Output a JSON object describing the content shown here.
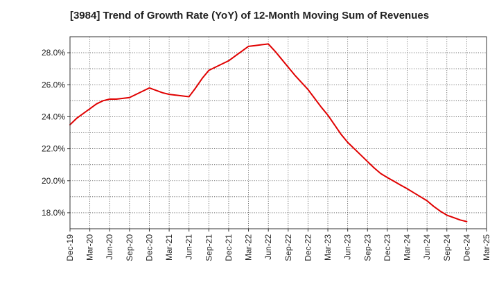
{
  "chart_data": {
    "type": "line",
    "title": "[3984]  Trend of Growth Rate (YoY) of 12-Month Moving Sum of Revenues",
    "xlabel": "",
    "ylabel": "",
    "x_categories": [
      "Dec-19",
      "Mar-20",
      "Jun-20",
      "Sep-20",
      "Dec-20",
      "Mar-21",
      "Jun-21",
      "Sep-21",
      "Dec-21",
      "Mar-22",
      "Jun-22",
      "Sep-22",
      "Dec-22",
      "Mar-23",
      "Jun-23",
      "Sep-23",
      "Dec-23",
      "Mar-24",
      "Jun-24",
      "Sep-24",
      "Dec-24",
      "Mar-25"
    ],
    "y_ticks": [
      {
        "value": 18,
        "label": "18.0%"
      },
      {
        "value": 20,
        "label": "20.0%"
      },
      {
        "value": 22,
        "label": "22.0%"
      },
      {
        "value": 24,
        "label": "24.0%"
      },
      {
        "value": 26,
        "label": "26.0%"
      },
      {
        "value": 28,
        "label": "28.0%"
      }
    ],
    "ylim": [
      17.0,
      29.0
    ],
    "grid": true,
    "series": [
      {
        "color": "#e00000",
        "values": [
          {
            "x": "Dec-19",
            "y": 23.5
          },
          {
            "x": "Jan-20",
            "y": 23.9
          },
          {
            "x": "Feb-20",
            "y": 24.2
          },
          {
            "x": "Mar-20",
            "y": 24.5
          },
          {
            "x": "Apr-20",
            "y": 24.8
          },
          {
            "x": "May-20",
            "y": 25.0
          },
          {
            "x": "Jun-20",
            "y": 25.1
          },
          {
            "x": "Jul-20",
            "y": 25.1
          },
          {
            "x": "Aug-20",
            "y": 25.15
          },
          {
            "x": "Sep-20",
            "y": 25.2
          },
          {
            "x": "Oct-20",
            "y": 25.4
          },
          {
            "x": "Nov-20",
            "y": 25.6
          },
          {
            "x": "Dec-20",
            "y": 25.8
          },
          {
            "x": "Jan-21",
            "y": 25.65
          },
          {
            "x": "Feb-21",
            "y": 25.5
          },
          {
            "x": "Mar-21",
            "y": 25.4
          },
          {
            "x": "Apr-21",
            "y": 25.35
          },
          {
            "x": "May-21",
            "y": 25.3
          },
          {
            "x": "Jun-21",
            "y": 25.25
          },
          {
            "x": "Jul-21",
            "y": 25.8
          },
          {
            "x": "Aug-21",
            "y": 26.4
          },
          {
            "x": "Sep-21",
            "y": 26.9
          },
          {
            "x": "Oct-21",
            "y": 27.1
          },
          {
            "x": "Nov-21",
            "y": 27.3
          },
          {
            "x": "Dec-21",
            "y": 27.5
          },
          {
            "x": "Jan-22",
            "y": 27.8
          },
          {
            "x": "Feb-22",
            "y": 28.1
          },
          {
            "x": "Mar-22",
            "y": 28.4
          },
          {
            "x": "Apr-22",
            "y": 28.45
          },
          {
            "x": "May-22",
            "y": 28.5
          },
          {
            "x": "Jun-22",
            "y": 28.55
          },
          {
            "x": "Jul-22",
            "y": 28.1
          },
          {
            "x": "Aug-22",
            "y": 27.6
          },
          {
            "x": "Sep-22",
            "y": 27.1
          },
          {
            "x": "Oct-22",
            "y": 26.6
          },
          {
            "x": "Nov-22",
            "y": 26.15
          },
          {
            "x": "Dec-22",
            "y": 25.7
          },
          {
            "x": "Jan-23",
            "y": 25.15
          },
          {
            "x": "Feb-23",
            "y": 24.6
          },
          {
            "x": "Mar-23",
            "y": 24.1
          },
          {
            "x": "Apr-23",
            "y": 23.5
          },
          {
            "x": "May-23",
            "y": 22.9
          },
          {
            "x": "Jun-23",
            "y": 22.4
          },
          {
            "x": "Jul-23",
            "y": 22.0
          },
          {
            "x": "Aug-23",
            "y": 21.6
          },
          {
            "x": "Sep-23",
            "y": 21.2
          },
          {
            "x": "Oct-23",
            "y": 20.8
          },
          {
            "x": "Nov-23",
            "y": 20.45
          },
          {
            "x": "Dec-23",
            "y": 20.2
          },
          {
            "x": "Jan-24",
            "y": 19.97
          },
          {
            "x": "Feb-24",
            "y": 19.73
          },
          {
            "x": "Mar-24",
            "y": 19.5
          },
          {
            "x": "Apr-24",
            "y": 19.25
          },
          {
            "x": "May-24",
            "y": 19.0
          },
          {
            "x": "Jun-24",
            "y": 18.75
          },
          {
            "x": "Jul-24",
            "y": 18.4
          },
          {
            "x": "Aug-24",
            "y": 18.1
          },
          {
            "x": "Sep-24",
            "y": 17.85
          },
          {
            "x": "Oct-24",
            "y": 17.7
          },
          {
            "x": "Nov-24",
            "y": 17.55
          },
          {
            "x": "Dec-24",
            "y": 17.45
          }
        ]
      }
    ]
  }
}
